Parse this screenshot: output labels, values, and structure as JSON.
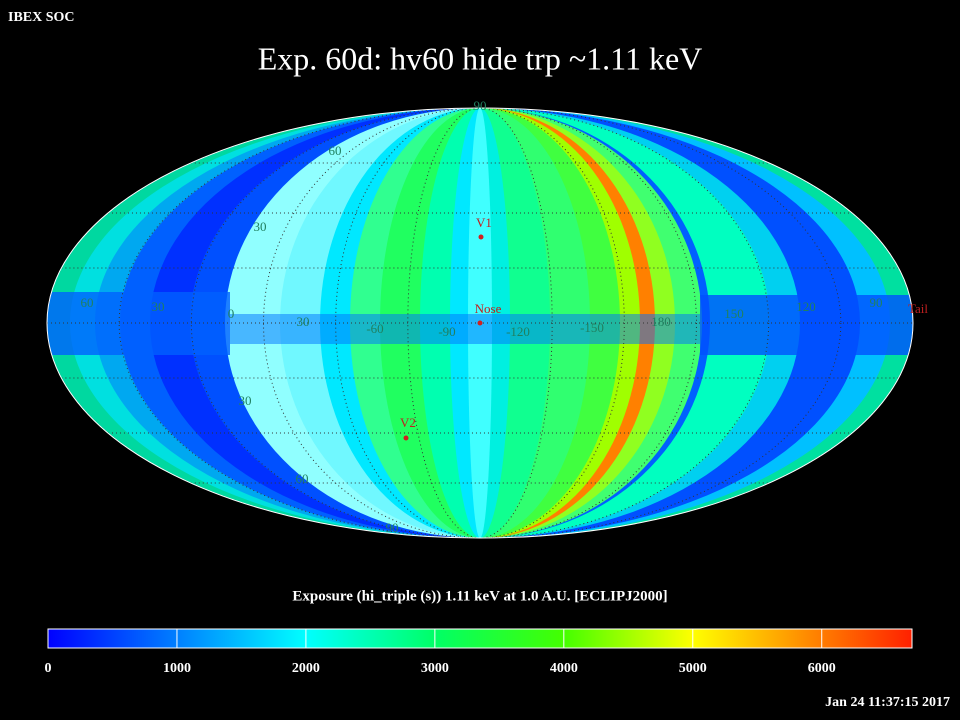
{
  "header": {
    "corner": "IBEX SOC",
    "title": "Exp.   60d: hv60 hide trp ~1.11 keV"
  },
  "map": {
    "grid_labels": [
      "90",
      "60",
      "30",
      "60",
      "30",
      "0",
      "30",
      "-60",
      "-90",
      "-120",
      "-150",
      "180",
      "150",
      "120",
      "90",
      "30",
      "60",
      "90"
    ],
    "markers": [
      "V1",
      "Nose",
      "V2",
      "Tail"
    ]
  },
  "colorbar": {
    "label": "Exposure (hi_triple (s))  1.11 keV at 1.0 A.U. [ECLIPJ2000]",
    "range": [
      0,
      6700
    ],
    "ticks": [
      0,
      1000,
      2000,
      3000,
      4000,
      5000,
      6000
    ],
    "stops": [
      {
        "value": 0,
        "color": "#0000ff"
      },
      {
        "value": 2000,
        "color": "#00ffff"
      },
      {
        "value": 3000,
        "color": "#00ff66"
      },
      {
        "value": 4000,
        "color": "#44ff00"
      },
      {
        "value": 5000,
        "color": "#ffff00"
      },
      {
        "value": 6700,
        "color": "#ff2000"
      }
    ]
  },
  "footer": {
    "timestamp": "Jan 24 11:37:15 2017"
  }
}
